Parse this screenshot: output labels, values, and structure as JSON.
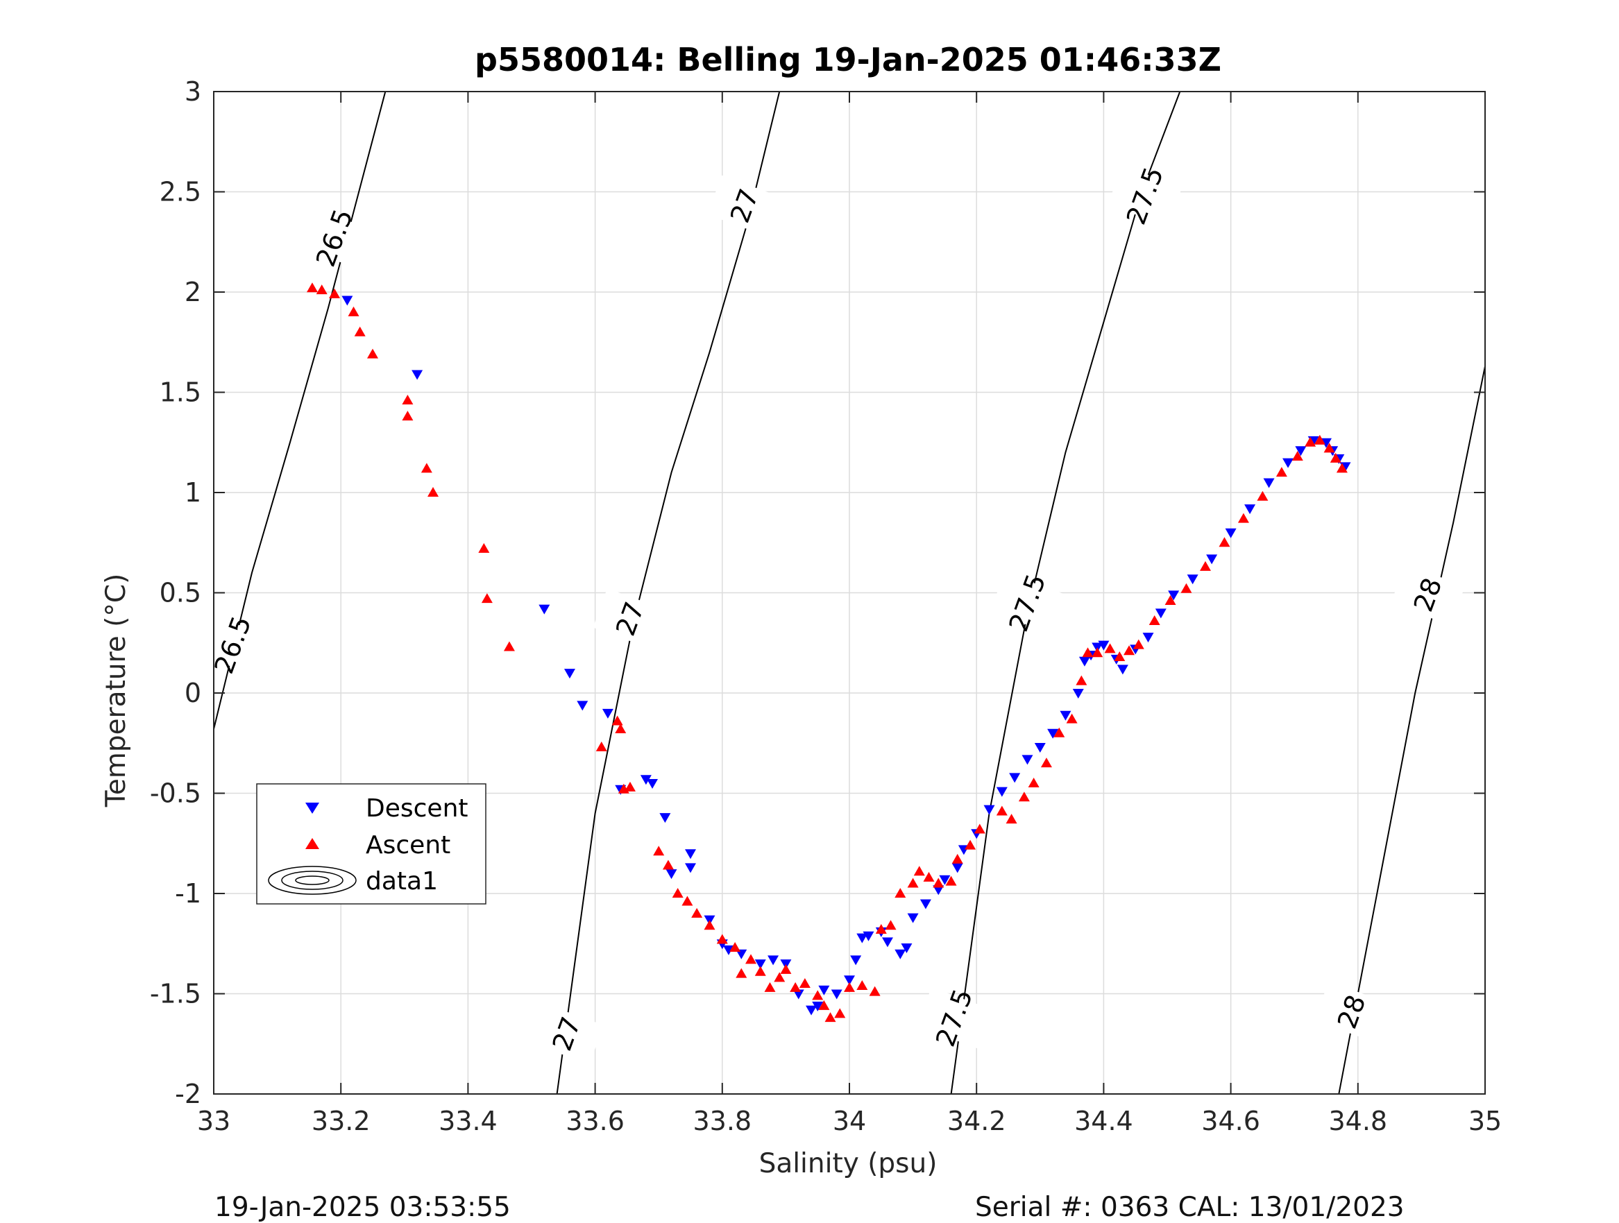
{
  "chart_data": {
    "type": "scatter",
    "title": "p5580014: Belling 19-Jan-2025 01:46:33Z",
    "xlabel": "Salinity (psu)",
    "ylabel": "Temperature (°C)",
    "xlim": [
      33,
      35
    ],
    "ylim": [
      -2,
      3
    ],
    "xticks": [
      33,
      33.2,
      33.4,
      33.6,
      33.8,
      34,
      34.2,
      34.4,
      34.6,
      34.8,
      35
    ],
    "xtick_labels": [
      "33",
      "33.2",
      "33.4",
      "33.6",
      "33.8",
      "34",
      "34.2",
      "34.4",
      "34.6",
      "34.8",
      "35"
    ],
    "yticks": [
      -2,
      -1.5,
      -1,
      -0.5,
      0,
      0.5,
      1,
      1.5,
      2,
      2.5,
      3
    ],
    "ytick_labels": [
      "-2",
      "-1.5",
      "-1",
      "-0.5",
      "0",
      "0.5",
      "1",
      "1.5",
      "2",
      "2.5",
      "3"
    ],
    "grid": true,
    "legend": {
      "position": "left-middle",
      "entries": [
        {
          "label": "Descent",
          "marker": "triangle-down",
          "color": "#0000ff"
        },
        {
          "label": "Ascent",
          "marker": "triangle-up",
          "color": "#ff0000"
        },
        {
          "label": "data1",
          "marker": "contour"
        }
      ]
    },
    "series": [
      {
        "name": "Descent",
        "marker": "triangle-down",
        "color": "#0000ff",
        "points": [
          [
            33.21,
            1.96
          ],
          [
            33.32,
            1.59
          ],
          [
            33.52,
            0.42
          ],
          [
            33.56,
            0.1
          ],
          [
            33.58,
            -0.06
          ],
          [
            33.62,
            -0.1
          ],
          [
            33.64,
            -0.48
          ],
          [
            33.68,
            -0.43
          ],
          [
            33.69,
            -0.45
          ],
          [
            33.71,
            -0.62
          ],
          [
            33.72,
            -0.9
          ],
          [
            33.75,
            -0.8
          ],
          [
            33.75,
            -0.87
          ],
          [
            33.78,
            -1.13
          ],
          [
            33.8,
            -1.25
          ],
          [
            33.81,
            -1.28
          ],
          [
            33.83,
            -1.3
          ],
          [
            33.86,
            -1.35
          ],
          [
            33.88,
            -1.33
          ],
          [
            33.9,
            -1.35
          ],
          [
            33.92,
            -1.5
          ],
          [
            33.94,
            -1.58
          ],
          [
            33.95,
            -1.56
          ],
          [
            33.96,
            -1.48
          ],
          [
            33.98,
            -1.5
          ],
          [
            34.0,
            -1.43
          ],
          [
            34.01,
            -1.33
          ],
          [
            34.02,
            -1.22
          ],
          [
            34.03,
            -1.21
          ],
          [
            34.05,
            -1.19
          ],
          [
            34.06,
            -1.24
          ],
          [
            34.08,
            -1.3
          ],
          [
            34.09,
            -1.27
          ],
          [
            34.1,
            -1.12
          ],
          [
            34.12,
            -1.05
          ],
          [
            34.14,
            -0.98
          ],
          [
            34.15,
            -0.93
          ],
          [
            34.17,
            -0.87
          ],
          [
            34.18,
            -0.78
          ],
          [
            34.2,
            -0.7
          ],
          [
            34.22,
            -0.58
          ],
          [
            34.24,
            -0.49
          ],
          [
            34.26,
            -0.42
          ],
          [
            34.28,
            -0.33
          ],
          [
            34.3,
            -0.27
          ],
          [
            34.32,
            -0.2
          ],
          [
            34.34,
            -0.11
          ],
          [
            34.36,
            0.0
          ],
          [
            34.37,
            0.16
          ],
          [
            34.38,
            0.19
          ],
          [
            34.39,
            0.23
          ],
          [
            34.4,
            0.24
          ],
          [
            34.42,
            0.17
          ],
          [
            34.43,
            0.12
          ],
          [
            34.45,
            0.22
          ],
          [
            34.47,
            0.28
          ],
          [
            34.49,
            0.4
          ],
          [
            34.51,
            0.49
          ],
          [
            34.54,
            0.57
          ],
          [
            34.57,
            0.67
          ],
          [
            34.6,
            0.8
          ],
          [
            34.63,
            0.92
          ],
          [
            34.66,
            1.05
          ],
          [
            34.69,
            1.15
          ],
          [
            34.71,
            1.21
          ],
          [
            34.73,
            1.26
          ],
          [
            34.75,
            1.25
          ],
          [
            34.76,
            1.21
          ],
          [
            34.77,
            1.17
          ],
          [
            34.78,
            1.13
          ]
        ]
      },
      {
        "name": "Ascent",
        "marker": "triangle-up",
        "color": "#ff0000",
        "points": [
          [
            33.155,
            2.02
          ],
          [
            33.17,
            2.01
          ],
          [
            33.19,
            1.99
          ],
          [
            33.22,
            1.9
          ],
          [
            33.23,
            1.8
          ],
          [
            33.25,
            1.69
          ],
          [
            33.305,
            1.46
          ],
          [
            33.305,
            1.38
          ],
          [
            33.335,
            1.12
          ],
          [
            33.345,
            1.0
          ],
          [
            33.425,
            0.72
          ],
          [
            33.43,
            0.47
          ],
          [
            33.465,
            0.23
          ],
          [
            33.61,
            -0.27
          ],
          [
            33.635,
            -0.14
          ],
          [
            33.64,
            -0.18
          ],
          [
            33.645,
            -0.48
          ],
          [
            33.655,
            -0.47
          ],
          [
            33.7,
            -0.79
          ],
          [
            33.715,
            -0.86
          ],
          [
            33.73,
            -1.0
          ],
          [
            33.745,
            -1.04
          ],
          [
            33.76,
            -1.1
          ],
          [
            33.78,
            -1.16
          ],
          [
            33.8,
            -1.23
          ],
          [
            33.82,
            -1.27
          ],
          [
            33.83,
            -1.4
          ],
          [
            33.845,
            -1.33
          ],
          [
            33.86,
            -1.39
          ],
          [
            33.875,
            -1.47
          ],
          [
            33.89,
            -1.42
          ],
          [
            33.9,
            -1.38
          ],
          [
            33.915,
            -1.47
          ],
          [
            33.93,
            -1.45
          ],
          [
            33.95,
            -1.51
          ],
          [
            33.96,
            -1.56
          ],
          [
            33.97,
            -1.62
          ],
          [
            33.985,
            -1.6
          ],
          [
            34.0,
            -1.47
          ],
          [
            34.02,
            -1.46
          ],
          [
            34.04,
            -1.49
          ],
          [
            34.05,
            -1.18
          ],
          [
            34.065,
            -1.16
          ],
          [
            34.08,
            -1.0
          ],
          [
            34.1,
            -0.95
          ],
          [
            34.11,
            -0.89
          ],
          [
            34.125,
            -0.92
          ],
          [
            34.14,
            -0.95
          ],
          [
            34.16,
            -0.94
          ],
          [
            34.17,
            -0.83
          ],
          [
            34.19,
            -0.76
          ],
          [
            34.205,
            -0.68
          ],
          [
            34.24,
            -0.59
          ],
          [
            34.255,
            -0.63
          ],
          [
            34.275,
            -0.52
          ],
          [
            34.29,
            -0.45
          ],
          [
            34.31,
            -0.35
          ],
          [
            34.33,
            -0.2
          ],
          [
            34.35,
            -0.13
          ],
          [
            34.365,
            0.06
          ],
          [
            34.375,
            0.2
          ],
          [
            34.39,
            0.2
          ],
          [
            34.41,
            0.22
          ],
          [
            34.425,
            0.18
          ],
          [
            34.44,
            0.21
          ],
          [
            34.455,
            0.24
          ],
          [
            34.48,
            0.36
          ],
          [
            34.505,
            0.46
          ],
          [
            34.53,
            0.52
          ],
          [
            34.56,
            0.63
          ],
          [
            34.59,
            0.75
          ],
          [
            34.62,
            0.87
          ],
          [
            34.65,
            0.98
          ],
          [
            34.68,
            1.1
          ],
          [
            34.705,
            1.18
          ],
          [
            34.725,
            1.25
          ],
          [
            34.74,
            1.26
          ],
          [
            34.755,
            1.22
          ],
          [
            34.765,
            1.17
          ],
          [
            34.775,
            1.12
          ]
        ]
      }
    ],
    "isopycnals": [
      {
        "points": [
          [
            33.0,
            -0.18
          ],
          [
            33.06,
            0.6
          ],
          [
            33.12,
            1.25
          ],
          [
            33.18,
            1.92
          ],
          [
            33.27,
            3.0
          ]
        ]
      },
      {
        "points": [
          [
            33.54,
            -2.0
          ],
          [
            33.6,
            -0.6
          ],
          [
            33.66,
            0.35
          ],
          [
            33.72,
            1.1
          ],
          [
            33.78,
            1.7
          ],
          [
            33.84,
            2.35
          ],
          [
            33.89,
            3.0
          ]
        ]
      },
      {
        "points": [
          [
            34.16,
            -2.0
          ],
          [
            34.22,
            -0.6
          ],
          [
            34.28,
            0.4
          ],
          [
            34.34,
            1.2
          ],
          [
            34.4,
            1.85
          ],
          [
            34.46,
            2.5
          ],
          [
            34.52,
            3.0
          ]
        ]
      },
      {
        "points": [
          [
            34.77,
            -2.0
          ],
          [
            34.83,
            -1.0
          ],
          [
            34.89,
            0.0
          ],
          [
            34.95,
            0.85
          ],
          [
            35.0,
            1.63
          ]
        ]
      }
    ],
    "isopycnal_labels": [
      {
        "text": "26.5",
        "x": 33.19,
        "y": 2.27
      },
      {
        "text": "26.5",
        "x": 33.03,
        "y": 0.24
      },
      {
        "text": "27",
        "x": 33.835,
        "y": 2.43
      },
      {
        "text": "27",
        "x": 33.655,
        "y": 0.37
      },
      {
        "text": "27",
        "x": 33.555,
        "y": -1.7
      },
      {
        "text": "27.5",
        "x": 34.465,
        "y": 2.48
      },
      {
        "text": "27.5",
        "x": 34.28,
        "y": 0.45
      },
      {
        "text": "27.5",
        "x": 34.165,
        "y": -1.62
      },
      {
        "text": "28",
        "x": 34.91,
        "y": 0.49
      },
      {
        "text": "28",
        "x": 34.79,
        "y": -1.59
      }
    ]
  },
  "footer": {
    "timestamp": "19-Jan-2025 03:53:55",
    "serial_cal": "Serial #: 0363  CAL: 13/01/2023"
  }
}
